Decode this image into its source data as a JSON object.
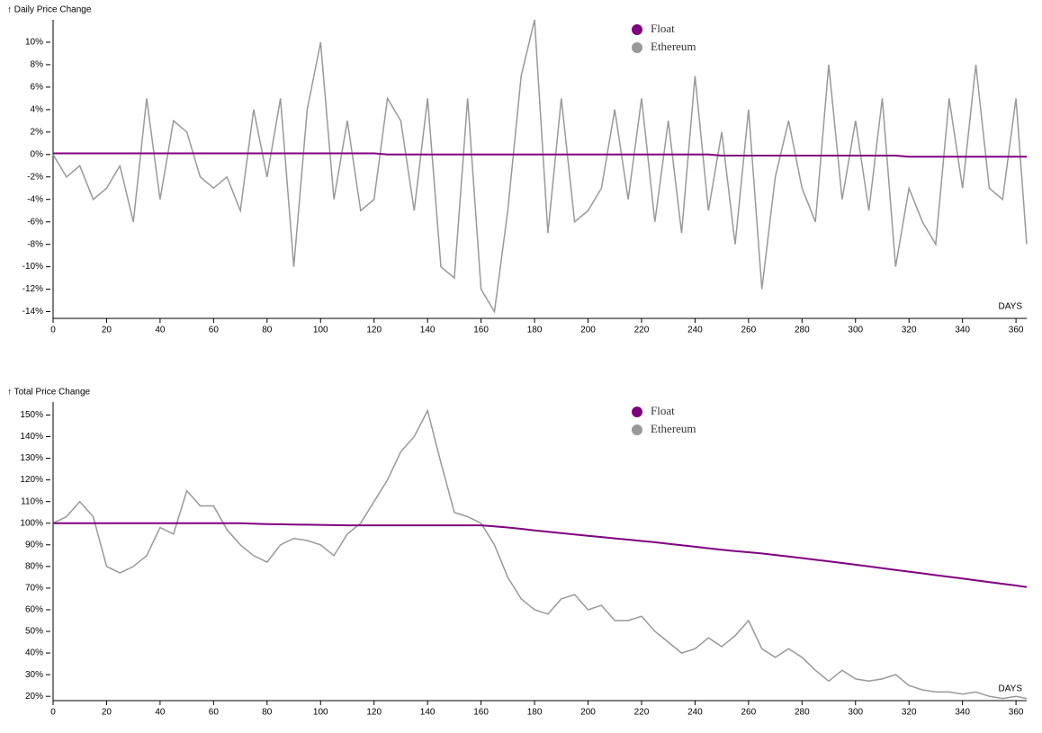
{
  "chart_data": [
    {
      "type": "line",
      "y_label": "↑ Daily Price Change",
      "x_label": "DAYS",
      "x": [
        0,
        5,
        10,
        15,
        20,
        25,
        30,
        35,
        40,
        45,
        50,
        55,
        60,
        65,
        70,
        75,
        80,
        85,
        90,
        95,
        100,
        105,
        110,
        115,
        120,
        125,
        130,
        135,
        140,
        145,
        150,
        155,
        160,
        165,
        170,
        175,
        180,
        185,
        190,
        195,
        200,
        205,
        210,
        215,
        220,
        225,
        230,
        235,
        240,
        245,
        250,
        255,
        260,
        265,
        270,
        275,
        280,
        285,
        290,
        295,
        300,
        305,
        310,
        315,
        320,
        325,
        330,
        335,
        340,
        345,
        350,
        355,
        360,
        364
      ],
      "xlim": [
        0,
        364
      ],
      "xticks": [
        0,
        20,
        40,
        60,
        80,
        100,
        120,
        140,
        160,
        180,
        200,
        220,
        240,
        260,
        280,
        300,
        320,
        340,
        360
      ],
      "ylim": [
        -14.6,
        12
      ],
      "yticks": [
        {
          "value": -14,
          "label": "-14%"
        },
        {
          "value": -12,
          "label": "-12%"
        },
        {
          "value": -10,
          "label": "-10%"
        },
        {
          "value": -8,
          "label": "-8%"
        },
        {
          "value": -6,
          "label": "-6%"
        },
        {
          "value": -4,
          "label": "-4%"
        },
        {
          "value": -2,
          "label": "-2%"
        },
        {
          "value": 0,
          "label": "0%"
        },
        {
          "value": 2,
          "label": "2%"
        },
        {
          "value": 4,
          "label": "4%"
        },
        {
          "value": 6,
          "label": "6%"
        },
        {
          "value": 8,
          "label": "8%"
        },
        {
          "value": 10,
          "label": "10%"
        }
      ],
      "series": [
        {
          "name": "Float",
          "color": "#800080",
          "values": [
            0.1,
            0.1,
            0.1,
            0.1,
            0.1,
            0.1,
            0.1,
            0.1,
            0.1,
            0.1,
            0.1,
            0.1,
            0.1,
            0.1,
            0.1,
            0.1,
            0.1,
            0.1,
            0.1,
            0.1,
            0.1,
            0.1,
            0.1,
            0.1,
            0.1,
            0,
            0,
            0,
            0,
            0,
            0,
            0,
            0,
            0,
            0,
            0,
            0,
            0,
            0,
            0,
            0,
            0,
            0,
            0,
            0,
            0,
            0,
            0,
            0,
            0,
            -0.1,
            -0.1,
            -0.1,
            -0.1,
            -0.1,
            -0.1,
            -0.1,
            -0.1,
            -0.1,
            -0.1,
            -0.1,
            -0.1,
            -0.1,
            -0.1,
            -0.2,
            -0.2,
            -0.2,
            -0.2,
            -0.2,
            -0.2,
            -0.2,
            -0.2,
            -0.2,
            -0.2
          ]
        },
        {
          "name": "Ethereum",
          "color": "#999999",
          "values": [
            0,
            -2,
            -1,
            -4,
            -3,
            -1,
            -6,
            5,
            -4,
            3,
            2,
            -2,
            -3,
            -2,
            -5,
            4,
            -2,
            5,
            -10,
            4,
            10,
            -4,
            3,
            -5,
            -4,
            5,
            3,
            -5,
            5,
            -10,
            -11,
            5,
            -12,
            -14,
            -5,
            7,
            12,
            -7,
            5,
            -6,
            -5,
            -3,
            4,
            -4,
            5,
            -6,
            3,
            -7,
            7,
            -5,
            2,
            -8,
            4,
            -12,
            -2,
            3,
            -3,
            -6,
            8,
            -4,
            3,
            -5,
            5,
            -10,
            -3,
            -6,
            -8,
            5,
            -3,
            8,
            -3,
            -4,
            5,
            -8
          ]
        }
      ]
    },
    {
      "type": "line",
      "y_label": "↑ Total Price Change",
      "x_label": "DAYS",
      "x": [
        0,
        5,
        10,
        15,
        20,
        25,
        30,
        35,
        40,
        45,
        50,
        55,
        60,
        65,
        70,
        75,
        80,
        85,
        90,
        95,
        100,
        105,
        110,
        115,
        120,
        125,
        130,
        135,
        140,
        145,
        150,
        155,
        160,
        165,
        170,
        175,
        180,
        185,
        190,
        195,
        200,
        205,
        210,
        215,
        220,
        225,
        230,
        235,
        240,
        245,
        250,
        255,
        260,
        265,
        270,
        275,
        280,
        285,
        290,
        295,
        300,
        305,
        310,
        315,
        320,
        325,
        330,
        335,
        340,
        345,
        350,
        355,
        360,
        364
      ],
      "xlim": [
        0,
        364
      ],
      "xticks": [
        0,
        20,
        40,
        60,
        80,
        100,
        120,
        140,
        160,
        180,
        200,
        220,
        240,
        260,
        280,
        300,
        320,
        340,
        360
      ],
      "ylim": [
        18,
        156
      ],
      "yticks": [
        {
          "value": 20,
          "label": "20%"
        },
        {
          "value": 30,
          "label": "30%"
        },
        {
          "value": 40,
          "label": "40%"
        },
        {
          "value": 50,
          "label": "50%"
        },
        {
          "value": 60,
          "label": "60%"
        },
        {
          "value": 70,
          "label": "70%"
        },
        {
          "value": 80,
          "label": "80%"
        },
        {
          "value": 90,
          "label": "90%"
        },
        {
          "value": 100,
          "label": "100%"
        },
        {
          "value": 110,
          "label": "110%"
        },
        {
          "value": 120,
          "label": "120%"
        },
        {
          "value": 130,
          "label": "130%"
        },
        {
          "value": 140,
          "label": "140%"
        },
        {
          "value": 150,
          "label": "150%"
        }
      ],
      "series": [
        {
          "name": "Float",
          "color": "#800080",
          "values": [
            100,
            100,
            100,
            100,
            100,
            100,
            100,
            100,
            100,
            100,
            100,
            100,
            100,
            100,
            100,
            99.8,
            99.6,
            99.5,
            99.4,
            99.3,
            99.2,
            99.1,
            99,
            99,
            99,
            99,
            99,
            99,
            99,
            99,
            99,
            99,
            99,
            98.5,
            98,
            97.4,
            96.7,
            96,
            95.4,
            94.8,
            94.2,
            93.6,
            93,
            92.4,
            91.8,
            91.2,
            90.5,
            89.8,
            89.1,
            88.4,
            87.7,
            87.1,
            86.6,
            86,
            85.3,
            84.6,
            83.9,
            83.1,
            82.4,
            81.6,
            80.8,
            80,
            79.2,
            78.4,
            77.6,
            76.8,
            76,
            75.2,
            74.4,
            73.6,
            72.8,
            72,
            71.2,
            70.5
          ]
        },
        {
          "name": "Ethereum",
          "color": "#999999",
          "values": [
            100,
            103,
            110,
            103,
            80,
            77,
            80,
            85,
            98,
            95,
            115,
            108,
            108,
            97,
            90,
            85,
            82,
            90,
            93,
            92,
            90,
            85,
            95,
            100,
            110,
            120,
            133,
            140,
            152,
            128,
            105,
            103,
            100,
            90,
            75,
            65,
            60,
            58,
            65,
            67,
            60,
            62,
            55,
            55,
            57,
            50,
            45,
            40,
            42,
            47,
            43,
            48,
            55,
            42,
            38,
            42,
            38,
            32,
            27,
            32,
            28,
            27,
            28,
            30,
            25,
            23,
            22,
            22,
            21,
            22,
            20,
            19,
            20,
            19
          ]
        }
      ]
    }
  ]
}
